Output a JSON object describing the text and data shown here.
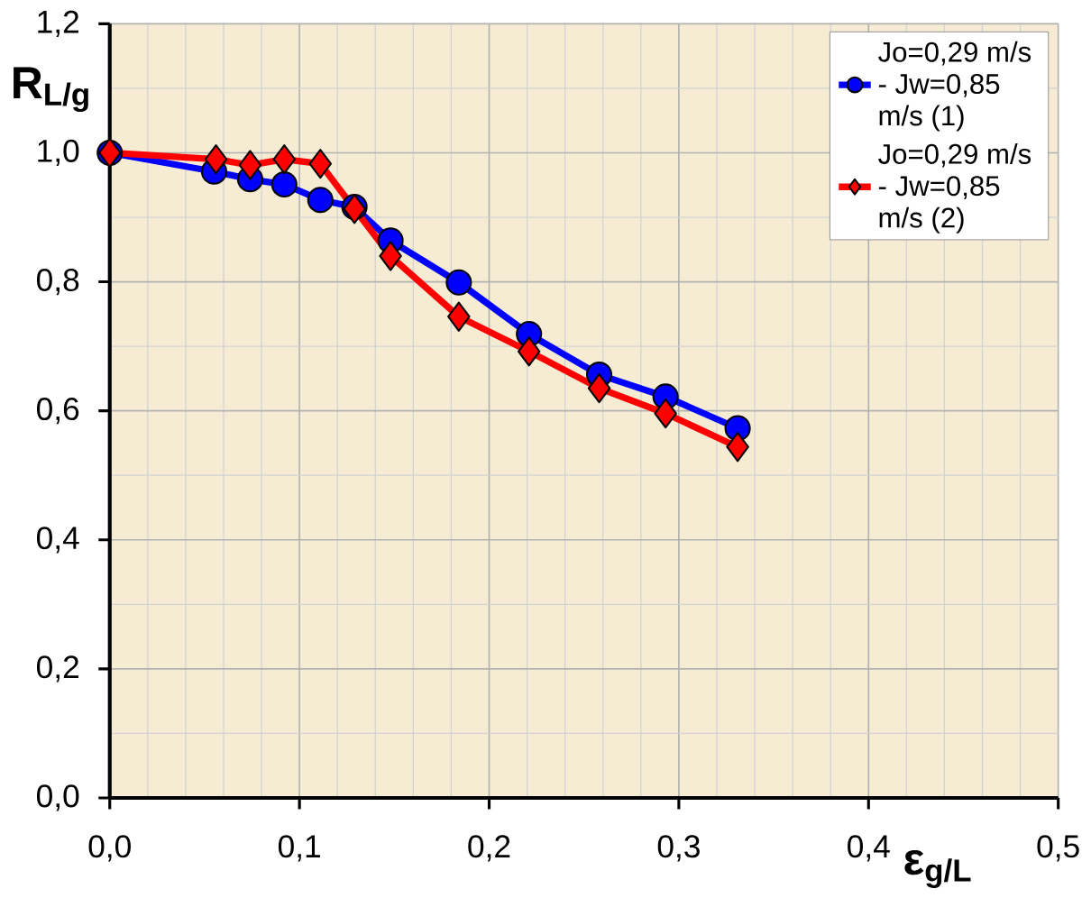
{
  "chart_data": {
    "type": "line",
    "xlabel": "ε$_{g/L}$",
    "ylabel": "R$_{L/g}$",
    "xlim": [
      0,
      0.5
    ],
    "ylim": [
      0,
      1.2
    ],
    "xticks": [
      {
        "value": 0,
        "label": "0,0"
      },
      {
        "value": 0.1,
        "label": "0,1"
      },
      {
        "value": 0.2,
        "label": "0,2"
      },
      {
        "value": 0.3,
        "label": "0,3"
      },
      {
        "value": 0.4,
        "label": "0,4"
      },
      {
        "value": 0.5,
        "label": "0,5"
      }
    ],
    "yticks": [
      {
        "value": 0,
        "label": "0,0"
      },
      {
        "value": 0.2,
        "label": "0,2"
      },
      {
        "value": 0.4,
        "label": "0,4"
      },
      {
        "value": 0.6,
        "label": "0,6"
      },
      {
        "value": 0.8,
        "label": "0,8"
      },
      {
        "value": 1.0,
        "label": "1,0"
      },
      {
        "value": 1.2,
        "label": "1,2"
      }
    ],
    "grid": true,
    "legend": "top right",
    "line_style": "solid",
    "series": [
      {
        "name": "Jo=0,29 m/s - Jw=0,85 m/s (1)",
        "color": "#0000ff",
        "marker": "circle",
        "x": [
          0,
          0.055,
          0.074,
          0.092,
          0.111,
          0.129,
          0.148,
          0.184,
          0.221,
          0.258,
          0.293,
          0.331
        ],
        "values": [
          1.0,
          0.971,
          0.959,
          0.951,
          0.927,
          0.916,
          0.864,
          0.799,
          0.719,
          0.656,
          0.622,
          0.573
        ]
      },
      {
        "name": "Jo=0,29 m/s - Jw=0,85 m/s (2)",
        "color": "#ff0000",
        "marker": "diamond",
        "x": [
          0,
          0.056,
          0.074,
          0.092,
          0.111,
          0.129,
          0.148,
          0.184,
          0.221,
          0.258,
          0.293,
          0.331
        ],
        "values": [
          1.0,
          0.99,
          0.981,
          0.99,
          0.983,
          0.913,
          0.84,
          0.746,
          0.692,
          0.635,
          0.596,
          0.544
        ]
      }
    ]
  }
}
